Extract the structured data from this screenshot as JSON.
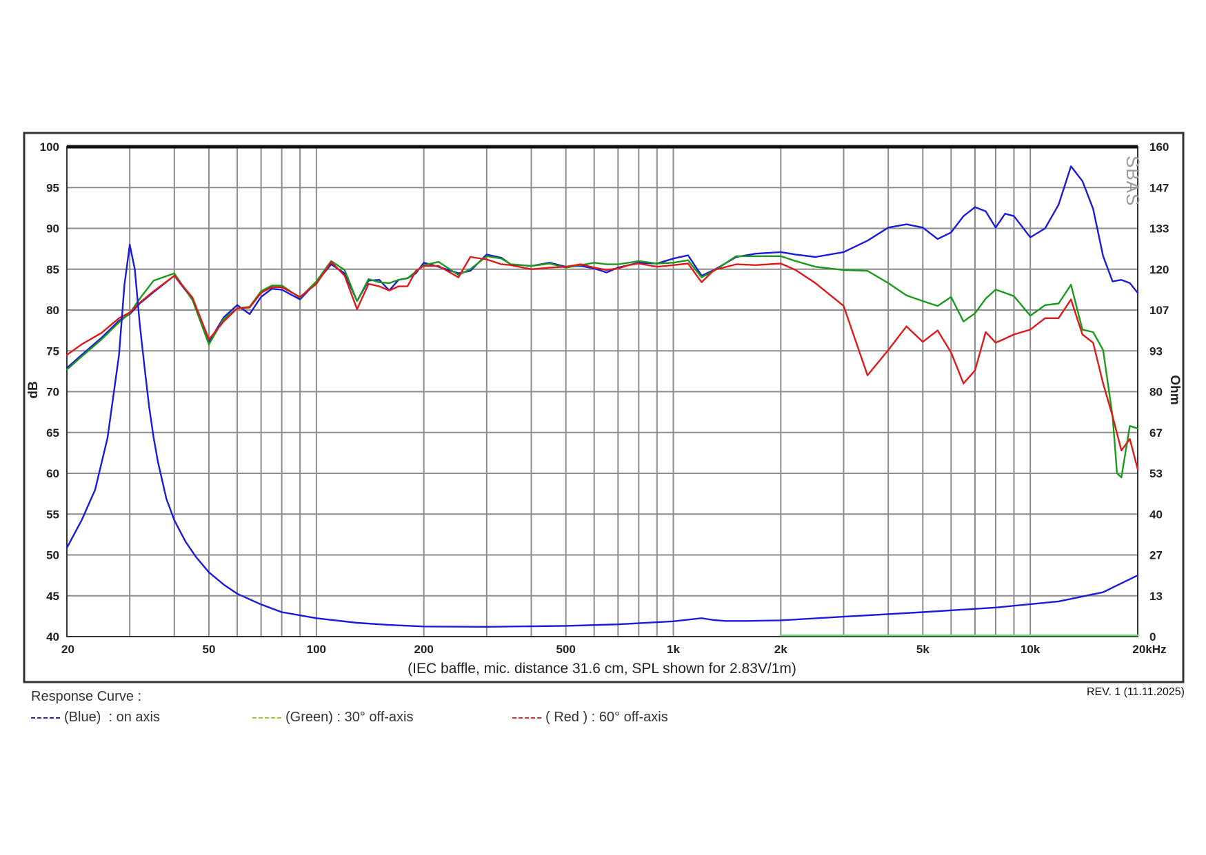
{
  "chart_data": {
    "type": "line",
    "subtitle": "(IEC baffle, mic. distance 31.6 cm, SPL shown for 2.83V/1m)",
    "ylabel": "dB",
    "y2label": "Ohm",
    "x_scale": "log",
    "xlim": [
      20,
      20000
    ],
    "ylim": [
      40,
      100
    ],
    "y2lim": [
      0,
      160
    ],
    "grid": true,
    "x_ticks": [
      {
        "value": 20,
        "label": "20"
      },
      {
        "value": 50,
        "label": "50"
      },
      {
        "value": 100,
        "label": "100"
      },
      {
        "value": 200,
        "label": "200"
      },
      {
        "value": 500,
        "label": "500"
      },
      {
        "value": 1000,
        "label": "1k"
      },
      {
        "value": 2000,
        "label": "2k"
      },
      {
        "value": 5000,
        "label": "5k"
      },
      {
        "value": 10000,
        "label": "10k"
      },
      {
        "value": 20000,
        "label": "20kHz"
      }
    ],
    "y_ticks": [
      "100",
      "95",
      "90",
      "85",
      "80",
      "75",
      "70",
      "65",
      "60",
      "55",
      "50",
      "45",
      "40"
    ],
    "y2_ticks": [
      "160",
      "147",
      "133",
      "120",
      "107",
      "93",
      "80",
      "67",
      "53",
      "40",
      "27",
      "13",
      "0"
    ],
    "series": [
      {
        "name": "on axis",
        "color": "#1a1adc",
        "x": [
          20,
          22,
          25,
          28,
          30,
          32,
          35,
          40,
          45,
          50,
          55,
          60,
          65,
          70,
          75,
          80,
          90,
          100,
          110,
          120,
          130,
          140,
          150,
          160,
          170,
          180,
          190,
          200,
          220,
          250,
          270,
          300,
          330,
          350,
          400,
          450,
          500,
          550,
          600,
          650,
          700,
          750,
          800,
          900,
          1000,
          1100,
          1200,
          1300,
          1500,
          1700,
          2000,
          2200,
          2500,
          3000,
          3500,
          4000,
          4500,
          5000,
          5500,
          6000,
          6500,
          7000,
          7500,
          8000,
          8500,
          9000,
          10000,
          11000,
          12000,
          13000,
          14000,
          15000,
          16000,
          17000,
          18000,
          19000,
          20000
        ],
        "y": [
          72.9,
          74.5,
          76.6,
          78.7,
          79.5,
          80.8,
          82.2,
          84.2,
          81.3,
          76.1,
          79.1,
          80.6,
          79.5,
          81.6,
          82.6,
          82.5,
          81.3,
          83.4,
          85.6,
          84.5,
          81.1,
          83.6,
          83.7,
          82.4,
          83.7,
          83.9,
          84.5,
          85.8,
          85.3,
          84.5,
          84.8,
          86.8,
          86.4,
          85.6,
          85.4,
          85.8,
          85.3,
          85.4,
          85.1,
          84.6,
          85.2,
          85.5,
          85.8,
          85.7,
          86.3,
          86.7,
          84.2,
          84.9,
          86.5,
          86.9,
          87.1,
          86.8,
          86.5,
          87.1,
          88.5,
          90.1,
          90.5,
          90.1,
          88.7,
          89.5,
          91.5,
          92.6,
          92.1,
          90.1,
          91.8,
          91.5,
          88.9,
          90.0,
          92.9,
          97.6,
          95.8,
          92.4,
          86.6,
          83.5,
          83.7,
          83.3,
          82.1
        ]
      },
      {
        "name": "30° off-axis",
        "color": "#1a9a1a",
        "x": [
          20,
          22,
          25,
          28,
          30,
          32,
          35,
          40,
          45,
          50,
          55,
          60,
          65,
          70,
          75,
          80,
          90,
          100,
          110,
          120,
          130,
          140,
          150,
          160,
          170,
          180,
          190,
          200,
          220,
          250,
          270,
          300,
          330,
          350,
          400,
          450,
          500,
          550,
          600,
          650,
          700,
          750,
          800,
          900,
          1000,
          1100,
          1200,
          1300,
          1500,
          1700,
          2000,
          2200,
          2500,
          3000,
          3500,
          4000,
          4500,
          5000,
          5500,
          6000,
          6500,
          7000,
          7500,
          8000,
          8500,
          9000,
          10000,
          11000,
          12000,
          13000,
          14000,
          15000,
          16000,
          17000,
          17500,
          18000,
          19000,
          20000
        ],
        "y": [
          72.7,
          74.3,
          76.4,
          78.5,
          79.6,
          81.4,
          83.6,
          84.5,
          81.2,
          75.8,
          78.9,
          80.2,
          80.4,
          82.3,
          83.0,
          83.0,
          81.5,
          83.5,
          86.0,
          84.9,
          81.1,
          83.8,
          83.4,
          83.3,
          83.7,
          83.9,
          84.7,
          85.5,
          85.9,
          84.3,
          85.0,
          86.6,
          86.3,
          85.6,
          85.4,
          85.7,
          85.2,
          85.5,
          85.8,
          85.6,
          85.6,
          85.8,
          86.0,
          85.7,
          85.8,
          86.1,
          84.0,
          84.8,
          86.6,
          86.6,
          86.6,
          86.0,
          85.3,
          84.9,
          84.8,
          83.3,
          81.8,
          81.1,
          80.5,
          81.6,
          78.6,
          79.6,
          81.4,
          82.5,
          82.1,
          81.7,
          79.3,
          80.6,
          80.8,
          83.1,
          77.6,
          77.3,
          75.1,
          67.0,
          60.0,
          59.5,
          65.8,
          65.5
        ]
      },
      {
        "name": "60° off-axis",
        "color": "#e01818",
        "x": [
          20,
          22,
          25,
          28,
          30,
          32,
          35,
          40,
          45,
          50,
          55,
          60,
          65,
          70,
          75,
          80,
          90,
          100,
          110,
          120,
          130,
          140,
          150,
          160,
          170,
          180,
          190,
          200,
          220,
          250,
          270,
          300,
          330,
          350,
          400,
          450,
          500,
          550,
          600,
          650,
          700,
          750,
          800,
          900,
          1000,
          1100,
          1200,
          1300,
          1500,
          1700,
          2000,
          2200,
          2500,
          3000,
          3500,
          4000,
          4500,
          5000,
          5500,
          6000,
          6500,
          7000,
          7500,
          8000,
          8500,
          9000,
          10000,
          11000,
          12000,
          13000,
          14000,
          15000,
          16000,
          17000,
          18000,
          19000,
          20000
        ],
        "y": [
          74.5,
          75.8,
          77.2,
          79.0,
          79.7,
          80.9,
          82.3,
          84.2,
          81.5,
          76.4,
          78.6,
          80.2,
          80.3,
          82.1,
          82.8,
          82.8,
          81.6,
          83.2,
          85.9,
          84.2,
          80.1,
          83.2,
          82.9,
          82.4,
          82.9,
          82.9,
          84.8,
          85.4,
          85.4,
          84.0,
          86.5,
          86.2,
          85.6,
          85.5,
          85.0,
          85.2,
          85.3,
          85.6,
          85.2,
          84.9,
          85.1,
          85.5,
          85.7,
          85.3,
          85.5,
          85.7,
          83.4,
          84.9,
          85.6,
          85.5,
          85.7,
          84.9,
          83.3,
          80.5,
          72.0,
          75.1,
          78.0,
          76.1,
          77.5,
          74.8,
          71.0,
          72.6,
          77.3,
          76.0,
          76.5,
          77.0,
          77.6,
          79.0,
          79.0,
          81.3,
          77.0,
          76.0,
          71.0,
          67.0,
          62.8,
          64.2,
          60.5
        ]
      },
      {
        "name": "impedance (Ohm)",
        "color": "#1a1adc",
        "axis": "right",
        "x": [
          20,
          22,
          24,
          26,
          28,
          29,
          30,
          31,
          32,
          33,
          34,
          35,
          36,
          38,
          40,
          43,
          46,
          50,
          55,
          60,
          70,
          80,
          100,
          130,
          160,
          200,
          300,
          500,
          700,
          1000,
          1200,
          1300,
          1400,
          1600,
          2000,
          3000,
          5000,
          8000,
          12000,
          16000,
          20000
        ],
        "y": [
          29,
          38,
          48,
          65,
          92,
          115,
          128,
          120,
          102,
          88,
          75,
          65,
          57,
          45,
          38,
          31,
          26,
          21,
          17,
          14,
          10.5,
          8,
          6,
          4.5,
          3.8,
          3.3,
          3.2,
          3.5,
          4.0,
          5.0,
          6.0,
          5.4,
          5.1,
          5.1,
          5.3,
          6.5,
          8.0,
          9.5,
          11.5,
          14.5,
          20.0
        ]
      },
      {
        "name": "reference",
        "color": "#66dd66",
        "axis": "right",
        "x": [
          2000,
          20000
        ],
        "y": [
          0.4,
          0.4
        ]
      }
    ]
  },
  "legend": {
    "title": "Response Curve :",
    "items": [
      {
        "label": "(Blue)  : on axis",
        "color": "#2a2aa8"
      },
      {
        "label": "(Green) : 30° off-axis",
        "color": "#9acd32"
      },
      {
        "label": "( Red ) : 60° off-axis",
        "color": "#dc3030"
      }
    ]
  },
  "revision": "REV. 1 (11.11.2025)",
  "watermark": "SBAS"
}
